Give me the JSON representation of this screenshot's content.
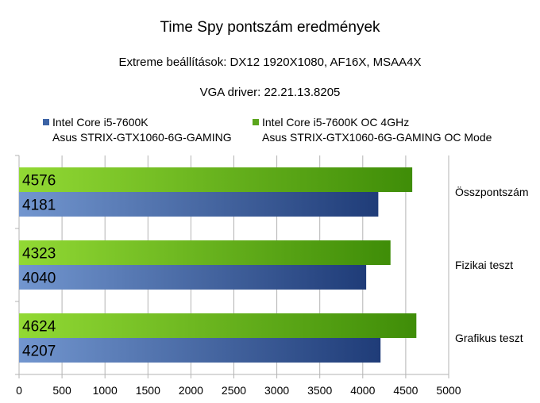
{
  "chart_data": {
    "type": "bar",
    "orientation": "horizontal",
    "title": "Time Spy pontszám eredmények",
    "subtitle": "Extreme beállítások: DX12 1920X1080, AF16X, MSAA4X",
    "subtitle2": "VGA driver: 22.21.13.8205",
    "categories": [
      "Összpontszám",
      "Fizikai teszt",
      "Grafikus teszt"
    ],
    "series": [
      {
        "name": "Intel Core i5-7600K",
        "name_line2": "Asus STRIX-GTX1060-6G-GAMING",
        "color": "#3c63a5",
        "values": [
          4181,
          4040,
          4207
        ]
      },
      {
        "name": "Intel Core i5-7600K OC 4GHz",
        "name_line2": "Asus STRIX-GTX1060-6G-GAMING OC Mode",
        "color": "#5aa51c",
        "values": [
          4576,
          4323,
          4624
        ]
      }
    ],
    "xlim": [
      0,
      5000
    ],
    "xticks": [
      "0",
      "500",
      "1000",
      "1500",
      "2000",
      "2500",
      "3000",
      "3500",
      "4000",
      "4500",
      "5000"
    ],
    "grid": true,
    "legend": "top",
    "category_label_position": "right"
  }
}
